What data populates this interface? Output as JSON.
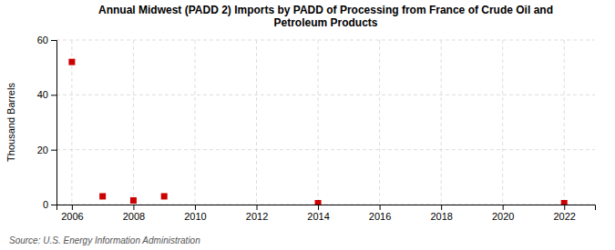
{
  "chart_data": {
    "type": "scatter",
    "title": "Annual Midwest (PADD 2) Imports by PADD of Processing from France of Crude Oil and\nPetroleum Products",
    "ylabel": "Thousand Barrels",
    "annotation": "Source: U.S. Energy Information Administration",
    "x": [
      2006,
      2007,
      2008,
      2009,
      2014,
      2022
    ],
    "values": [
      52,
      3,
      1.5,
      3,
      0.5,
      0.5
    ],
    "color": "#cc0000",
    "marker": "square",
    "xlim": [
      2005.5,
      2023
    ],
    "ylim": [
      0,
      60
    ],
    "xticks": [
      2006,
      2008,
      2010,
      2012,
      2014,
      2016,
      2018,
      2020,
      2022
    ],
    "yticks": [
      0,
      20,
      40,
      60
    ],
    "grid": true
  }
}
